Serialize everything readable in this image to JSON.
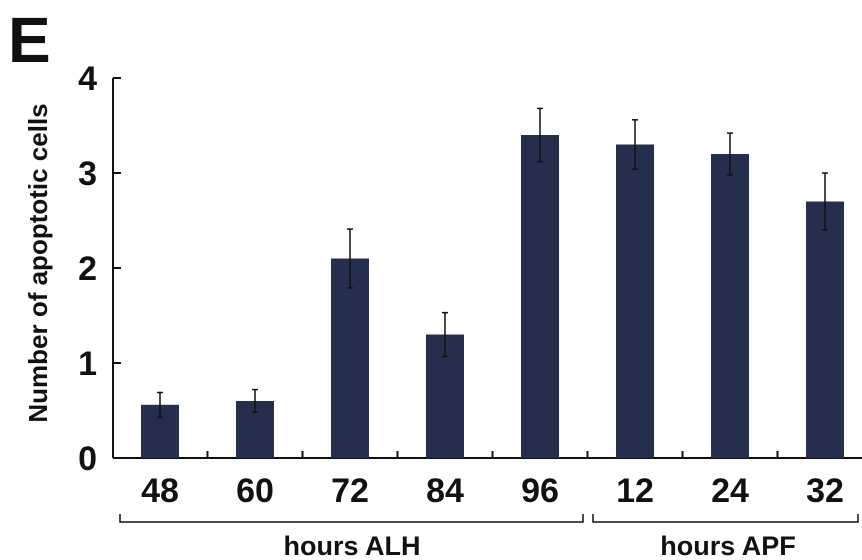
{
  "chart_data": {
    "type": "bar",
    "panel_label": "E",
    "ylabel": "Number of apoptotic cells",
    "ylim": [
      0,
      4
    ],
    "yticks": [
      "0",
      "1",
      "2",
      "3",
      "4"
    ],
    "categories": [
      "48",
      "60",
      "72",
      "84",
      "96",
      "12",
      "24",
      "32"
    ],
    "values": [
      0.56,
      0.6,
      2.1,
      1.3,
      3.4,
      3.3,
      3.2,
      2.7
    ],
    "errors": [
      0.13,
      0.12,
      0.31,
      0.23,
      0.28,
      0.26,
      0.22,
      0.3
    ],
    "groups": [
      {
        "label": "hours ALH",
        "start": 0,
        "end": 4
      },
      {
        "label": "hours APF",
        "start": 5,
        "end": 7
      }
    ],
    "bar_color": "#252e4d",
    "grid": false
  }
}
